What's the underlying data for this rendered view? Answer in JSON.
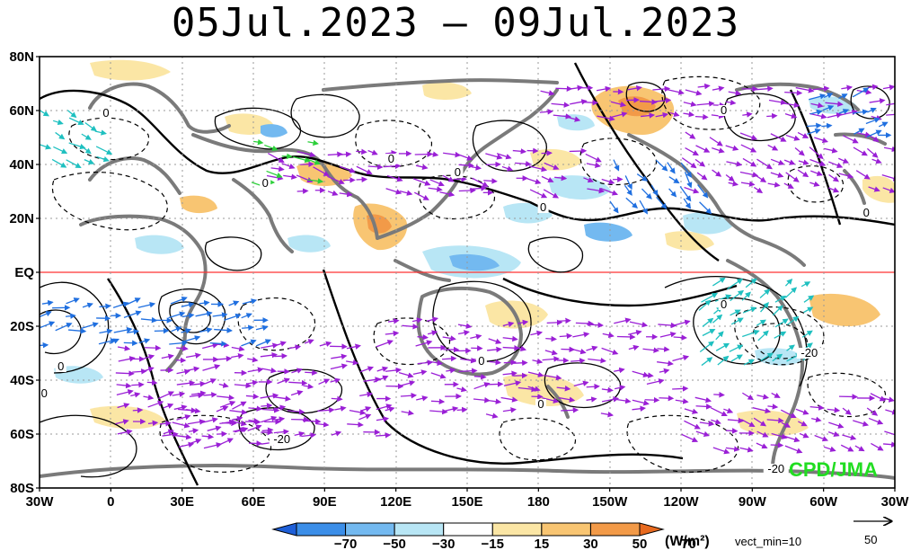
{
  "title": "05Jul.2023 – 09Jul.2023",
  "map": {
    "lat_labels": [
      "80N",
      "60N",
      "40N",
      "20N",
      "EQ",
      "20S",
      "40S",
      "60S",
      "80S"
    ],
    "lon_labels": [
      "30W",
      "0",
      "30E",
      "60E",
      "90E",
      "120E",
      "150E",
      "180",
      "150W",
      "120W",
      "90W",
      "60W",
      "30W"
    ],
    "contour_labels": [
      {
        "text": "0",
        "lon": -2,
        "lat": 58
      },
      {
        "text": "0",
        "lon": 65,
        "lat": 32
      },
      {
        "text": "0",
        "lon": 118,
        "lat": 41
      },
      {
        "text": "0",
        "lon": 146,
        "lat": 36
      },
      {
        "text": "0",
        "lon": 182,
        "lat": 23
      },
      {
        "text": "0",
        "lon": 258,
        "lat": 59
      },
      {
        "text": "0",
        "lon": 318,
        "lat": 21
      },
      {
        "text": "0",
        "lon": -21,
        "lat": -36
      },
      {
        "text": "0",
        "lon": -28,
        "lat": -46
      },
      {
        "text": "0",
        "lon": 156,
        "lat": -34
      },
      {
        "text": "0",
        "lon": 181,
        "lat": -50
      },
      {
        "text": "0",
        "lon": 258,
        "lat": -13
      },
      {
        "text": "-20",
        "lon": 72,
        "lat": -63
      },
      {
        "text": "-20",
        "lon": 294,
        "lat": -31
      },
      {
        "text": "-20",
        "lon": 280,
        "lat": -74
      }
    ],
    "credit": "CPD/JMA"
  },
  "colorbar": {
    "ticks": [
      "−70",
      "−50",
      "−30",
      "−15",
      "15",
      "30",
      "50",
      "70"
    ],
    "units": "(W/m²)",
    "vector_note": "vect_min=10",
    "ref_vector_value": "50",
    "colors": [
      "#1e5fd8",
      "#3b8ee8",
      "#73b9f0",
      "#b8e6f5",
      "#ffffff",
      "#fbe6a5",
      "#f8c572",
      "#f29a48",
      "#e86a1f"
    ]
  }
}
